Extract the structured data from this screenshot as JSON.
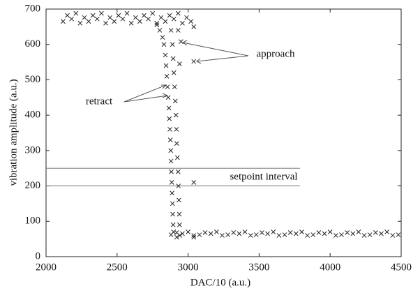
{
  "chart_data": {
    "type": "scatter",
    "xlabel": "DAC/10 (a.u.)",
    "ylabel": "vibration amplitude (a.u.)",
    "xlim": [
      2000,
      4500
    ],
    "ylim": [
      0,
      700
    ],
    "xticks": [
      2000,
      2500,
      3000,
      3500,
      4000,
      4500
    ],
    "yticks": [
      0,
      100,
      200,
      300,
      400,
      500,
      600,
      700
    ],
    "color": "#222222",
    "hlines": [
      200,
      250
    ],
    "annotations": [
      "approach",
      "retract",
      "setpoint interval"
    ],
    "x": [
      2120,
      2150,
      2180,
      2210,
      2240,
      2270,
      2300,
      2330,
      2360,
      2390,
      2420,
      2450,
      2480,
      2510,
      2540,
      2570,
      2600,
      2630,
      2660,
      2690,
      2720,
      2750,
      2780,
      2810,
      2840,
      2870,
      2900,
      2930,
      2960,
      2990,
      3020,
      2880,
      2920,
      2960,
      3000,
      3040,
      3080,
      3120,
      3160,
      3200,
      3240,
      3280,
      3320,
      3360,
      3400,
      3440,
      3480,
      3520,
      3560,
      3600,
      3640,
      3680,
      3720,
      3760,
      3800,
      3840,
      3880,
      3920,
      3960,
      4000,
      4040,
      4080,
      4120,
      4160,
      4200,
      4240,
      4280,
      4320,
      4360,
      4400,
      4440,
      4480,
      2780,
      2800,
      2820,
      2830,
      2840,
      2845,
      2850,
      2855,
      2860,
      2865,
      2868,
      2872,
      2875,
      2878,
      2880,
      2882,
      2885,
      2887,
      2890,
      2892,
      2895,
      2898,
      2880,
      2890,
      2895,
      2900,
      2905,
      2910,
      2915,
      2918,
      2920,
      2925,
      2930,
      2932,
      2935,
      2938,
      2940,
      2942,
      3040,
      2930,
      2950,
      3040,
      2940,
      3040,
      3040,
      2920
    ],
    "values": [
      665,
      682,
      672,
      688,
      660,
      676,
      665,
      682,
      672,
      688,
      660,
      676,
      665,
      682,
      672,
      688,
      660,
      676,
      665,
      682,
      672,
      688,
      660,
      676,
      665,
      682,
      672,
      688,
      660,
      676,
      665,
      62,
      68,
      65,
      70,
      60,
      62,
      68,
      65,
      70,
      60,
      62,
      68,
      65,
      70,
      60,
      62,
      68,
      65,
      70,
      60,
      62,
      68,
      65,
      70,
      60,
      62,
      68,
      65,
      70,
      60,
      62,
      68,
      65,
      70,
      60,
      62,
      68,
      65,
      70,
      60,
      62,
      655,
      640,
      620,
      600,
      570,
      540,
      510,
      480,
      450,
      420,
      390,
      360,
      330,
      300,
      270,
      240,
      210,
      180,
      150,
      120,
      90,
      70,
      640,
      600,
      560,
      520,
      480,
      440,
      400,
      360,
      320,
      280,
      240,
      200,
      160,
      120,
      90,
      60,
      650,
      640,
      608,
      552,
      545,
      210,
      55,
      55
    ]
  }
}
